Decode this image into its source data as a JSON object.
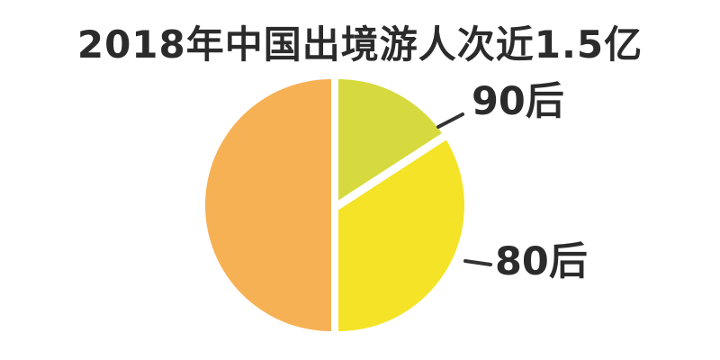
{
  "chart_data": {
    "type": "pie",
    "title": "2018年中国出境游人次近1.5亿",
    "legend_position": "none",
    "background_color": "#ffffff",
    "ink_color": "#2b2b2b",
    "style": "hand-drawn, white exploded gaps between slices, only two slices labeled via leader lines",
    "segments": [
      {
        "label": "90后",
        "color": "#d6da3e",
        "start_deg": 0,
        "end_deg": 57,
        "share_pct_est": 16
      },
      {
        "label": "80后",
        "color": "#f5e327",
        "start_deg": 57,
        "end_deg": 180,
        "share_pct_est": 34
      },
      {
        "label": "",
        "color": "#f7b155",
        "start_deg": 180,
        "end_deg": 360,
        "share_pct_est": 50
      }
    ]
  }
}
